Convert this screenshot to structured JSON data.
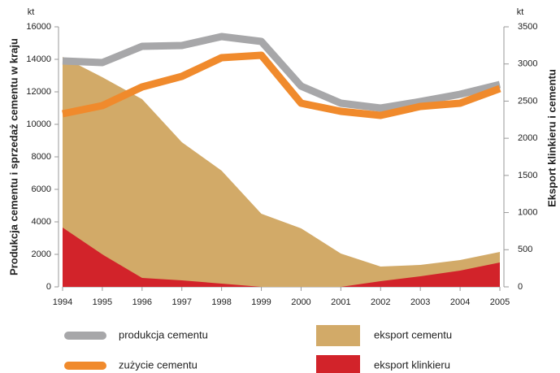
{
  "chart_data": {
    "type": "line",
    "y_label": "Produkcja cementu i sprzedaż cementu w kraju",
    "y2_label": "Eksport klinkieru i cementu",
    "y_unit": "kt",
    "y2_unit": "kt",
    "categories": [
      "1994",
      "1995",
      "1996",
      "1997",
      "1998",
      "1999",
      "2000",
      "2001",
      "2002",
      "2003",
      "2004",
      "2005"
    ],
    "series": [
      {
        "name": "eksport cementu",
        "type": "area",
        "axis": "y2",
        "color": "#d2aa68",
        "values": [
          3095,
          2822,
          2527,
          1947,
          1564,
          984,
          788,
          449,
          273,
          295,
          361,
          470
        ]
      },
      {
        "name": "eksport klinkieru",
        "type": "area",
        "axis": "y2",
        "color": "#d2232a",
        "values": [
          798,
          437,
          120,
          88,
          44,
          0,
          0,
          0,
          77,
          142,
          219,
          328
        ]
      },
      {
        "name": "produkcja cementu",
        "type": "line",
        "axis": "y",
        "color": "#a7a7a9",
        "values": [
          13900,
          13800,
          14800,
          14850,
          15400,
          15100,
          12350,
          11300,
          11000,
          11400,
          11850,
          12450
        ]
      },
      {
        "name": "zużycie cementu",
        "type": "line",
        "axis": "y",
        "color": "#f08a2c",
        "values": [
          10650,
          11150,
          12300,
          12950,
          14100,
          14250,
          11300,
          10800,
          10550,
          11100,
          11300,
          12200
        ]
      }
    ],
    "ylim": [
      0,
      16000
    ],
    "yticks": [
      0,
      2000,
      4000,
      6000,
      8000,
      10000,
      12000,
      14000,
      16000
    ],
    "y2lim": [
      0,
      3500
    ],
    "y2ticks": [
      0,
      500,
      1000,
      1500,
      2000,
      2500,
      3000,
      3500
    ]
  }
}
